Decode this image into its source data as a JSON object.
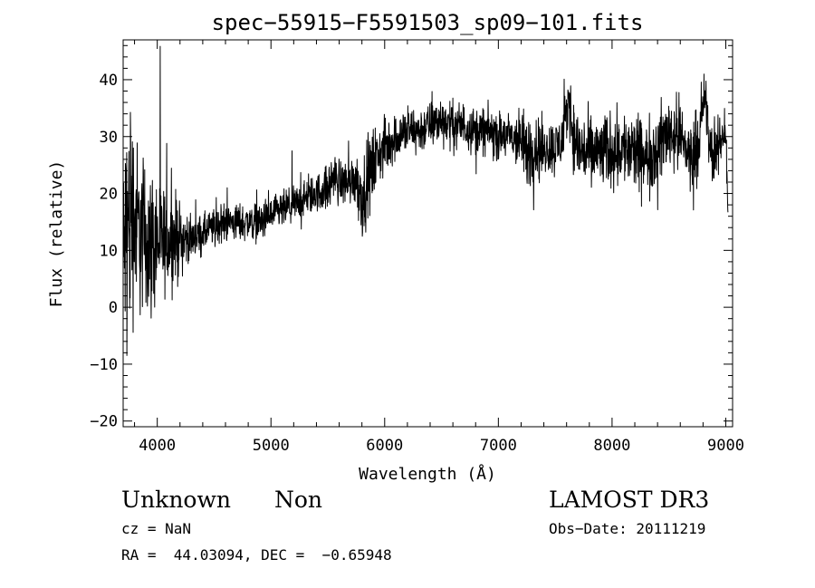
{
  "chart_data": {
    "type": "line",
    "title": "spec−55915−F5591503_sp09−101.fits",
    "xlabel": "Wavelength (Å)",
    "ylabel": "Flux (relative)",
    "xlim": [
      3700,
      9060
    ],
    "ylim": [
      -21,
      47
    ],
    "xticks": [
      4000,
      5000,
      6000,
      7000,
      8000,
      9000
    ],
    "yticks": [
      -20,
      -10,
      0,
      10,
      20,
      30,
      40
    ],
    "xtick_labels": [
      "4000",
      "5000",
      "6000",
      "7000",
      "8000",
      "9000"
    ],
    "ytick_labels": [
      "−20",
      "−10",
      "0",
      "10",
      "20",
      "30",
      "40"
    ],
    "grid": false,
    "series": [
      {
        "name": "flux",
        "x": [
          3700,
          3720,
          3740,
          3760,
          3780,
          3800,
          3830,
          3860,
          3900,
          3950,
          4000,
          4050,
          4100,
          4150,
          4200,
          4300,
          4400,
          4500,
          4600,
          4700,
          4800,
          4900,
          5000,
          5100,
          5200,
          5300,
          5400,
          5500,
          5550,
          5600,
          5700,
          5750,
          5800,
          5850,
          5900,
          5950,
          6000,
          6050,
          6100,
          6200,
          6300,
          6400,
          6500,
          6600,
          6700,
          6800,
          6900,
          7000,
          7100,
          7200,
          7250,
          7300,
          7400,
          7500,
          7550,
          7600,
          7620,
          7650,
          7700,
          7800,
          7900,
          8000,
          8100,
          8200,
          8300,
          8400,
          8500,
          8600,
          8700,
          8800,
          8820,
          8850,
          8900,
          8950,
          9000,
          9020
        ],
        "y": [
          8,
          12,
          14,
          16,
          17,
          15,
          14,
          13,
          12,
          11,
          12,
          11,
          12,
          12,
          12,
          12,
          13,
          14,
          15,
          15,
          15,
          15,
          16,
          17,
          18,
          19,
          20,
          21,
          23,
          22,
          22,
          23,
          19,
          22,
          25,
          27,
          28,
          29,
          30,
          31,
          31,
          32,
          33,
          32,
          32,
          31,
          31,
          30,
          30,
          29,
          27,
          28,
          28,
          28,
          29,
          33,
          38,
          31,
          28,
          27,
          27,
          28,
          28,
          27,
          26,
          28,
          31,
          30,
          26,
          33,
          38,
          29,
          26,
          29,
          32,
          14
        ],
        "noise": [
          10,
          12,
          13,
          14,
          12,
          10,
          9,
          9,
          8,
          8,
          7,
          6,
          5,
          5,
          4,
          2,
          2,
          2,
          2,
          2,
          2,
          2,
          2,
          2,
          2,
          2,
          2,
          2.5,
          2.5,
          2.5,
          2.5,
          3,
          4,
          4,
          4,
          3,
          3,
          3,
          2.5,
          2.5,
          2.5,
          2.5,
          2.5,
          2.5,
          2.5,
          2.5,
          2.5,
          2.5,
          2.5,
          3.5,
          4,
          4,
          3,
          3,
          3,
          3,
          3,
          3.5,
          4,
          4,
          4,
          4,
          4,
          4,
          4,
          4,
          4,
          4,
          4,
          4,
          3,
          3,
          3,
          3,
          3,
          3
        ],
        "color": "#000000"
      }
    ]
  },
  "info": {
    "object_class": "Unknown",
    "subclass": "Non",
    "survey": "LAMOST DR3",
    "redshift": "cz = NaN",
    "obs_date": "Obs−Date: 20111219",
    "coords": "RA =  44.03094, DEC =  −0.65948"
  }
}
